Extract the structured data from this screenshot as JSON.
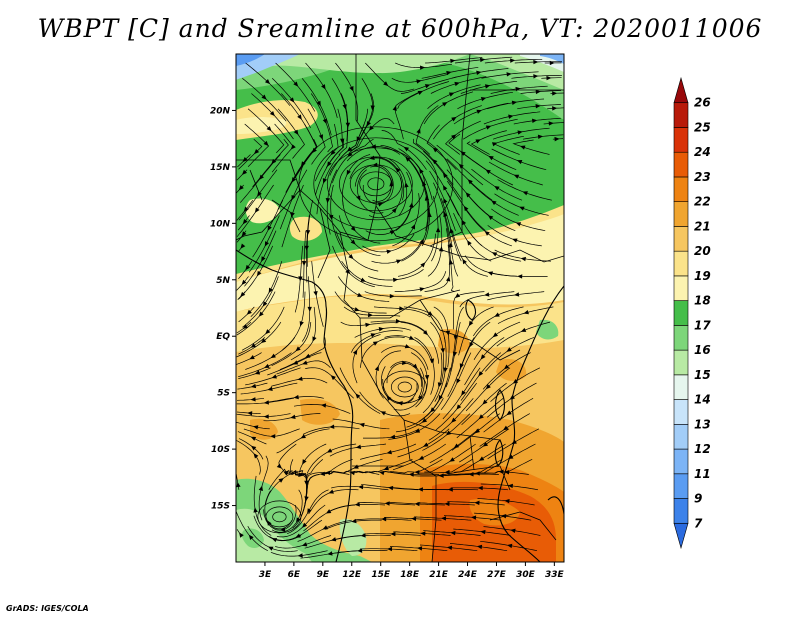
{
  "title": "WBPT [C] and Sreamline at 600hPa, VT: 2020011006",
  "credit": "GrADS: IGES/COLA",
  "map": {
    "lon_range": [
      0,
      34
    ],
    "lat_range": [
      -20,
      25
    ],
    "lon_ticks": [
      {
        "value": 3,
        "label": "3E"
      },
      {
        "value": 6,
        "label": "6E"
      },
      {
        "value": 9,
        "label": "9E"
      },
      {
        "value": 12,
        "label": "12E"
      },
      {
        "value": 15,
        "label": "15E"
      },
      {
        "value": 18,
        "label": "18E"
      },
      {
        "value": 21,
        "label": "21E"
      },
      {
        "value": 24,
        "label": "24E"
      },
      {
        "value": 27,
        "label": "27E"
      },
      {
        "value": 30,
        "label": "30E"
      },
      {
        "value": 33,
        "label": "33E"
      }
    ],
    "lat_ticks": [
      {
        "value": 20,
        "label": "20N"
      },
      {
        "value": 15,
        "label": "15N"
      },
      {
        "value": 10,
        "label": "10N"
      },
      {
        "value": 5,
        "label": "5N"
      },
      {
        "value": 0,
        "label": "EQ"
      },
      {
        "value": -5,
        "label": "5S"
      },
      {
        "value": -10,
        "label": "10S"
      },
      {
        "value": -15,
        "label": "15S"
      }
    ],
    "vortices": [
      {
        "name": "sahel-cyclonic-center",
        "lon": 14.5,
        "lat": 13.5
      },
      {
        "name": "congo-eddy",
        "lon": 17.5,
        "lat": -4.5
      },
      {
        "name": "southwest-eddy",
        "lon": 4.5,
        "lat": -16.0
      }
    ]
  },
  "colorbar": {
    "levels": [
      "7",
      "9",
      "11",
      "12",
      "13",
      "14",
      "15",
      "16",
      "17",
      "18",
      "19",
      "20",
      "21",
      "22",
      "23",
      "24",
      "25",
      "26"
    ],
    "colors": [
      "#2b6be0",
      "#3c82ea",
      "#5a9cf2",
      "#7cb4f6",
      "#a2cdf8",
      "#c8e4fa",
      "#e6f6ee",
      "#b8eaa4",
      "#7dd67a",
      "#45be4a",
      "#fcf3b0",
      "#fbe38a",
      "#f6c660",
      "#f0a530",
      "#ee8312",
      "#e85c06",
      "#d93208",
      "#b81a0a",
      "#98080a"
    ]
  }
}
